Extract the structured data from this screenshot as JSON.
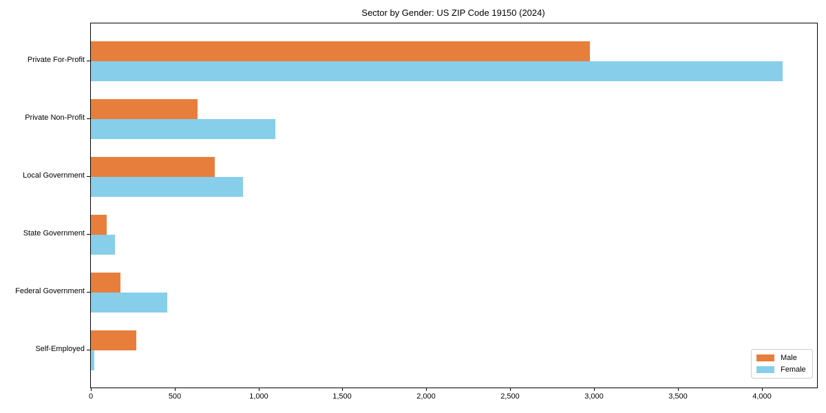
{
  "chart_data": {
    "type": "bar",
    "orientation": "horizontal",
    "title": "Sector by Gender: US ZIP Code 19150 (2024)",
    "categories": [
      "Private For-Profit",
      "Private Non-Profit",
      "Local Government",
      "State Government",
      "Federal Government",
      "Self-Employed"
    ],
    "series": [
      {
        "name": "Male",
        "color": "#e87e3c",
        "values": [
          2975,
          635,
          740,
          95,
          175,
          270
        ]
      },
      {
        "name": "Female",
        "color": "#87ceeb",
        "values": [
          4125,
          1100,
          905,
          145,
          455,
          20
        ]
      }
    ],
    "xlabel": "",
    "ylabel": "",
    "xlim": [
      0,
      4330
    ],
    "xticks": [
      0,
      500,
      1000,
      1500,
      2000,
      2500,
      3000,
      3500,
      4000
    ],
    "xtick_labels": [
      "0",
      "500",
      "1,000",
      "1,500",
      "2,000",
      "2,500",
      "3,000",
      "3,500",
      "4,000"
    ],
    "grid": false,
    "legend": {
      "position": "lower right"
    }
  }
}
